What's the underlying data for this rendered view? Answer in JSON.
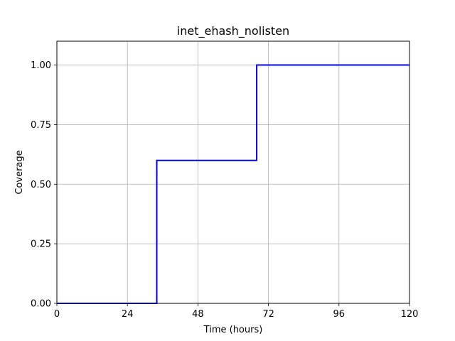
{
  "chart_data": {
    "type": "line",
    "title": "inet_ehash_nolisten",
    "xlabel": "Time (hours)",
    "ylabel": "Coverage",
    "xlim": [
      0,
      120
    ],
    "ylim": [
      0,
      1.1
    ],
    "x_ticks": [
      0,
      24,
      48,
      72,
      96,
      120
    ],
    "x_tick_labels": [
      "0",
      "24",
      "48",
      "72",
      "96",
      "120"
    ],
    "y_ticks": [
      0,
      0.25,
      0.5,
      0.75,
      1.0
    ],
    "y_tick_labels": [
      "0.00",
      "0.25",
      "0.50",
      "0.75",
      "1.00"
    ],
    "grid": true,
    "series": [
      {
        "color": "#0000ff",
        "step": true,
        "x": [
          0,
          34,
          34,
          68,
          68,
          120
        ],
        "y": [
          0,
          0,
          0.6,
          0.6,
          1.0,
          1.0
        ]
      }
    ]
  }
}
